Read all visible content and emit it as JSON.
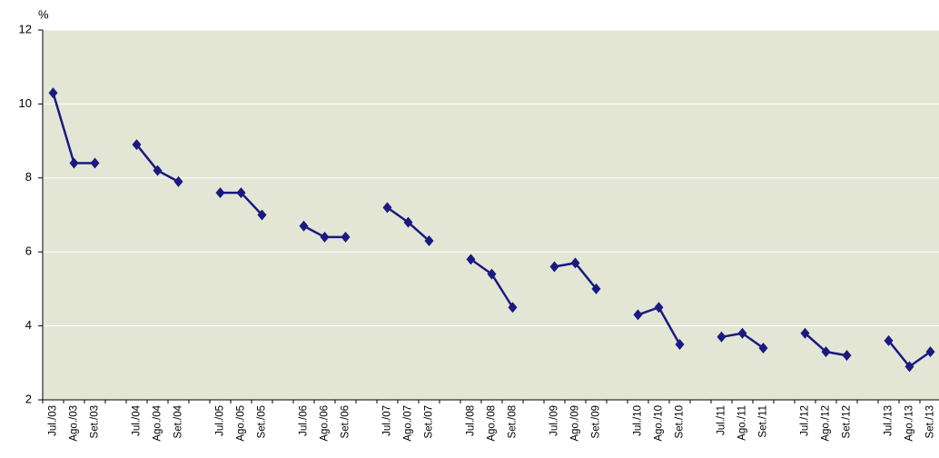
{
  "chart_data": {
    "type": "line",
    "y_label": "%",
    "categories": [
      "Jul./03",
      "Ago./03",
      "Set./03",
      null,
      "Jul./04",
      "Ago./04",
      "Set./04",
      null,
      "Jul./05",
      "Ago./05",
      "Set./05",
      null,
      "Jul./06",
      "Ago./06",
      "Set./06",
      null,
      "Jul./07",
      "Ago./07",
      "Set./07",
      null,
      "Jul./08",
      "Ago./08",
      "Set./08",
      null,
      "Jul./09",
      "Ago./09",
      "Set./09",
      null,
      "Jul./10",
      "Ago./10",
      "Set./10",
      null,
      "Jul./11",
      "Ago./11",
      "Set./11",
      null,
      "Jul./12",
      "Ago./12",
      "Set./12",
      null,
      "Jul./13",
      "Ago./13",
      "Set./13"
    ],
    "series": [
      {
        "color": "#1a1a80",
        "values": [
          10.3,
          8.4,
          8.4,
          null,
          8.9,
          8.2,
          7.9,
          null,
          7.6,
          7.6,
          7.0,
          null,
          6.7,
          6.4,
          6.4,
          null,
          7.2,
          6.8,
          6.3,
          null,
          5.8,
          5.4,
          4.5,
          null,
          5.6,
          5.7,
          5.0,
          null,
          4.3,
          4.5,
          3.5,
          null,
          3.7,
          3.8,
          3.4,
          null,
          3.8,
          3.3,
          3.2,
          null,
          3.6,
          2.9,
          3.3
        ]
      }
    ],
    "ylim": [
      2,
      12
    ],
    "yticks": [
      2,
      4,
      6,
      8,
      10,
      12
    ],
    "grid": true,
    "background": "#e3e6d5"
  }
}
